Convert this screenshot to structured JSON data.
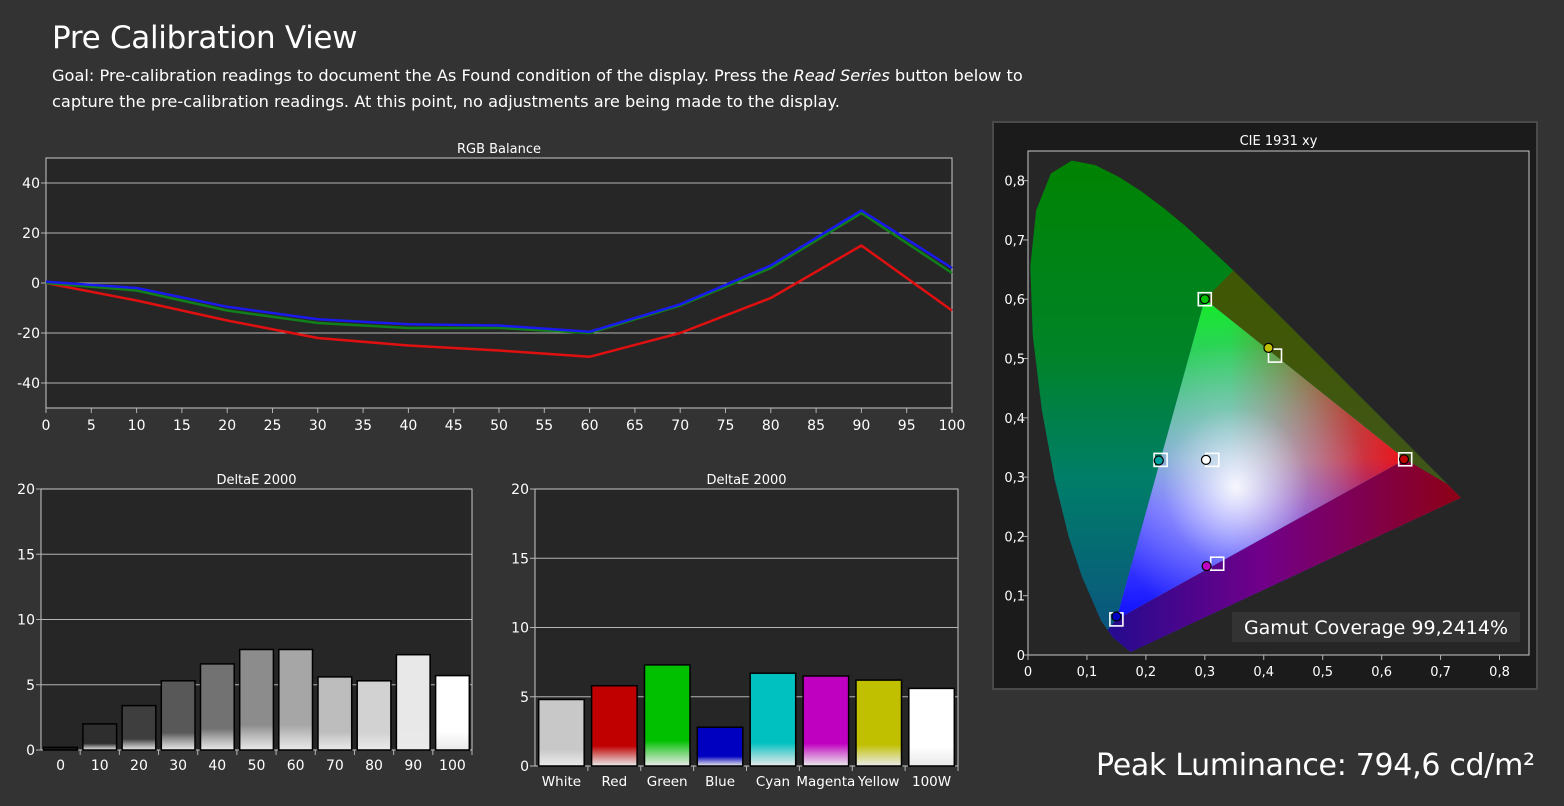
{
  "page": {
    "title": "Pre Calibration View",
    "goal_prefix": "Goal: Pre-calibration readings to document the As Found condition of the display. Press the ",
    "goal_em": "Read Series",
    "goal_suffix": " button below to capture the pre-calibration readings. At this point, no adjustments are being made to the display.",
    "peak_luminance": "Peak Luminance: 794,6 cd/m²"
  },
  "colors": {
    "background": "#333333",
    "plot_bg": "#262626",
    "grid": "#b4b4b4",
    "red": "#e01010",
    "green": "#11801a",
    "blue": "#1a1aee"
  },
  "chart_data": [
    {
      "id": "rgb-balance",
      "type": "line",
      "title": "RGB Balance",
      "x": [
        0,
        10,
        20,
        30,
        40,
        50,
        60,
        70,
        80,
        90,
        100
      ],
      "xticks": [
        "0",
        "5",
        "10",
        "15",
        "20",
        "25",
        "30",
        "35",
        "40",
        "45",
        "50",
        "55",
        "60",
        "65",
        "70",
        "75",
        "80",
        "85",
        "90",
        "95",
        "100"
      ],
      "xlim": [
        0,
        100
      ],
      "yticks": [
        "40",
        "20",
        "0",
        "-20",
        "-40"
      ],
      "ylim": [
        -50,
        50
      ],
      "grid": true,
      "series": [
        {
          "color": "red",
          "values": [
            0,
            -7,
            -15,
            -22,
            -25,
            -27,
            -29.5,
            -20,
            -6,
            15,
            -11
          ]
        },
        {
          "color": "green",
          "values": [
            0,
            -3,
            -11,
            -16,
            -18,
            -18,
            -20,
            -9,
            6,
            28,
            4
          ]
        },
        {
          "color": "blue",
          "values": [
            0.5,
            -2,
            -9.5,
            -14.5,
            -16.5,
            -17,
            -19.5,
            -8.5,
            7,
            29,
            6
          ]
        }
      ]
    },
    {
      "id": "deltae-grayscale",
      "type": "bar",
      "title": "DeltaE 2000",
      "categories": [
        "0",
        "10",
        "20",
        "30",
        "40",
        "50",
        "60",
        "70",
        "80",
        "90",
        "100"
      ],
      "values": [
        0.2,
        2.0,
        3.4,
        5.3,
        6.6,
        7.7,
        7.7,
        5.6,
        5.3,
        7.3,
        5.7
      ],
      "yticks": [
        "20",
        "15",
        "10",
        "5",
        "0"
      ],
      "ylim": [
        0,
        20
      ],
      "grid": true,
      "bar_colors": [
        "#1c1c1c",
        "#2e2e2e",
        "#3e3e3e",
        "#585858",
        "#727272",
        "#8c8c8c",
        "#a6a6a6",
        "#bdbdbd",
        "#d2d2d2",
        "#e8e8e8",
        "#ffffff"
      ]
    },
    {
      "id": "deltae-colors",
      "type": "bar",
      "title": "DeltaE 2000",
      "categories": [
        "White",
        "Red",
        "Green",
        "Blue",
        "Cyan",
        "Magenta",
        "Yellow",
        "100W"
      ],
      "values": [
        4.8,
        5.8,
        7.3,
        2.8,
        6.7,
        6.5,
        6.2,
        5.6
      ],
      "yticks": [
        "20",
        "15",
        "10",
        "5",
        "0"
      ],
      "ylim": [
        0,
        20
      ],
      "grid": true,
      "bar_colors": [
        "#c8c8c8",
        "#c00000",
        "#00c000",
        "#0000c0",
        "#00c0c0",
        "#c000c0",
        "#c0c000",
        "#ffffff"
      ]
    },
    {
      "id": "cie-1931",
      "type": "scatter",
      "title": "CIE 1931 xy",
      "xticks": [
        "0",
        "0,1",
        "0,2",
        "0,3",
        "0,4",
        "0,5",
        "0,6",
        "0,7",
        "0,8"
      ],
      "yticks": [
        "0,8",
        "0,7",
        "0,6",
        "0,5",
        "0,4",
        "0,3",
        "0,2",
        "0,1",
        "0"
      ],
      "xlim": [
        0,
        0.85
      ],
      "ylim": [
        0,
        0.85
      ],
      "gamut_coverage": "Gamut Coverage 99,2414%",
      "targets": [
        {
          "name": "red",
          "x": 0.64,
          "y": 0.33
        },
        {
          "name": "green",
          "x": 0.3,
          "y": 0.6
        },
        {
          "name": "blue",
          "x": 0.15,
          "y": 0.06
        },
        {
          "name": "cyan",
          "x": 0.225,
          "y": 0.329
        },
        {
          "name": "magenta",
          "x": 0.321,
          "y": 0.154
        },
        {
          "name": "yellow",
          "x": 0.419,
          "y": 0.505
        },
        {
          "name": "white",
          "x": 0.3127,
          "y": 0.329
        }
      ],
      "measured": [
        {
          "name": "red",
          "x": 0.638,
          "y": 0.33,
          "fill": "#c00000"
        },
        {
          "name": "green",
          "x": 0.3,
          "y": 0.6,
          "fill": "#00c000"
        },
        {
          "name": "blue",
          "x": 0.15,
          "y": 0.065,
          "fill": "#0000c0"
        },
        {
          "name": "cyan",
          "x": 0.222,
          "y": 0.328,
          "fill": "#00a0a0"
        },
        {
          "name": "magenta",
          "x": 0.303,
          "y": 0.15,
          "fill": "#c000c0"
        },
        {
          "name": "yellow",
          "x": 0.408,
          "y": 0.518,
          "fill": "#c0c000"
        },
        {
          "name": "white",
          "x": 0.302,
          "y": 0.329,
          "fill": "#ffffff"
        }
      ]
    }
  ]
}
